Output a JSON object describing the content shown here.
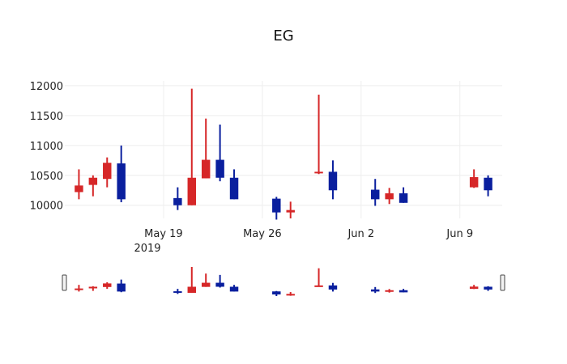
{
  "chart_data": {
    "type": "candlestick",
    "title": "EG",
    "increasing_color": "#d62728",
    "decreasing_color": "#0a1f9e",
    "grid_color": "#eeeeee",
    "slider_border_color": "#444444",
    "y_ticks": [
      10000,
      10500,
      11000,
      11500,
      12000
    ],
    "y_tick_labels": [
      "10000",
      "10500",
      "11000",
      "11500",
      "12000"
    ],
    "ylim": [
      9780,
      12080
    ],
    "x_range": [
      "2019-05-12",
      "2019-06-12"
    ],
    "x_ticks": [
      "2019-05-19",
      "2019-05-26",
      "2019-06-02",
      "2019-06-09"
    ],
    "x_tick_labels": [
      "May 19",
      "May 26",
      "Jun 2",
      "Jun 9"
    ],
    "x_year_label": "2019",
    "candles": [
      {
        "date": "2019-05-13",
        "open": 10220,
        "high": 10600,
        "low": 10100,
        "close": 10330,
        "dir": "inc"
      },
      {
        "date": "2019-05-14",
        "open": 10340,
        "high": 10500,
        "low": 10150,
        "close": 10460,
        "dir": "inc"
      },
      {
        "date": "2019-05-15",
        "open": 10440,
        "high": 10800,
        "low": 10300,
        "close": 10710,
        "dir": "inc"
      },
      {
        "date": "2019-05-16",
        "open": 10700,
        "high": 11000,
        "low": 10050,
        "close": 10100,
        "dir": "dec"
      },
      {
        "date": "2019-05-20",
        "open": 10120,
        "high": 10300,
        "low": 9920,
        "close": 10000,
        "dir": "dec"
      },
      {
        "date": "2019-05-21",
        "open": 10000,
        "high": 11950,
        "low": 10000,
        "close": 10460,
        "dir": "inc"
      },
      {
        "date": "2019-05-22",
        "open": 10450,
        "high": 11450,
        "low": 10450,
        "close": 10760,
        "dir": "inc"
      },
      {
        "date": "2019-05-23",
        "open": 10760,
        "high": 11350,
        "low": 10400,
        "close": 10460,
        "dir": "dec"
      },
      {
        "date": "2019-05-24",
        "open": 10460,
        "high": 10600,
        "low": 10100,
        "close": 10100,
        "dir": "dec"
      },
      {
        "date": "2019-05-27",
        "open": 10110,
        "high": 10140,
        "low": 9760,
        "close": 9880,
        "dir": "dec"
      },
      {
        "date": "2019-05-28",
        "open": 9880,
        "high": 10060,
        "low": 9780,
        "close": 9920,
        "dir": "inc"
      },
      {
        "date": "2019-05-30",
        "open": 10540,
        "high": 11850,
        "low": 10520,
        "close": 10560,
        "dir": "inc"
      },
      {
        "date": "2019-05-31",
        "open": 10560,
        "high": 10750,
        "low": 10100,
        "close": 10250,
        "dir": "dec"
      },
      {
        "date": "2019-06-03",
        "open": 10260,
        "high": 10440,
        "low": 9990,
        "close": 10100,
        "dir": "dec"
      },
      {
        "date": "2019-06-04",
        "open": 10100,
        "high": 10290,
        "low": 10020,
        "close": 10200,
        "dir": "inc"
      },
      {
        "date": "2019-06-05",
        "open": 10200,
        "high": 10300,
        "low": 10040,
        "close": 10040,
        "dir": "dec"
      },
      {
        "date": "2019-06-10",
        "open": 10300,
        "high": 10600,
        "low": 10290,
        "close": 10470,
        "dir": "inc"
      },
      {
        "date": "2019-06-11",
        "open": 10460,
        "high": 10500,
        "low": 10150,
        "close": 10250,
        "dir": "dec"
      }
    ]
  }
}
